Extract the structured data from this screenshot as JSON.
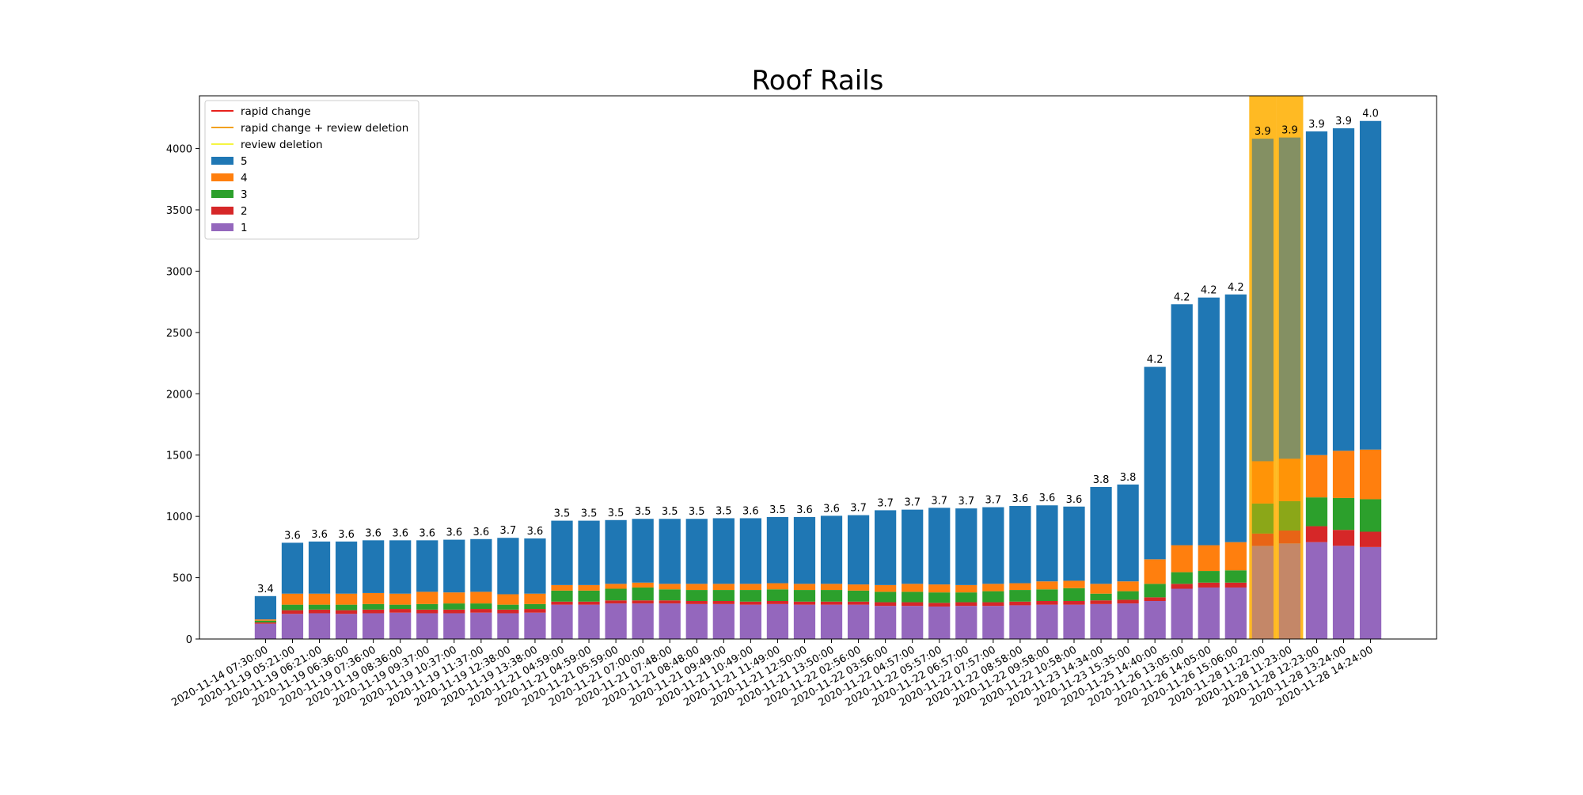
{
  "chart_data": {
    "type": "bar",
    "stacked": true,
    "title": "Roof Rails",
    "xlabel": "",
    "ylabel": "",
    "ylim": [
      0,
      4430
    ],
    "yticks": [
      0,
      500,
      1000,
      1500,
      2000,
      2500,
      3000,
      3500,
      4000
    ],
    "legend_position": "upper-left",
    "grid": false,
    "categories": [
      "2020-11-14 07:30:00",
      "2020-11-19 05:21:00",
      "2020-11-19 06:21:00",
      "2020-11-19 06:36:00",
      "2020-11-19 07:36:00",
      "2020-11-19 08:36:00",
      "2020-11-19 09:37:00",
      "2020-11-19 10:37:00",
      "2020-11-19 11:37:00",
      "2020-11-19 12:38:00",
      "2020-11-19 13:38:00",
      "2020-11-21 04:59:00",
      "2020-11-21 04:59:00",
      "2020-11-21 05:59:00",
      "2020-11-21 07:00:00",
      "2020-11-21 07:48:00",
      "2020-11-21 08:48:00",
      "2020-11-21 09:49:00",
      "2020-11-21 10:49:00",
      "2020-11-21 11:49:00",
      "2020-11-21 12:50:00",
      "2020-11-21 13:50:00",
      "2020-11-22 02:56:00",
      "2020-11-22 03:56:00",
      "2020-11-22 04:57:00",
      "2020-11-22 05:57:00",
      "2020-11-22 06:57:00",
      "2020-11-22 07:57:00",
      "2020-11-22 08:58:00",
      "2020-11-22 09:58:00",
      "2020-11-22 10:58:00",
      "2020-11-23 14:34:00",
      "2020-11-23 15:35:00",
      "2020-11-25 14:40:00",
      "2020-11-26 13:05:00",
      "2020-11-26 14:05:00",
      "2020-11-26 15:06:00",
      "2020-11-28 11:22:00",
      "2020-11-28 11:23:00",
      "2020-11-28 12:23:00",
      "2020-11-28 13:24:00",
      "2020-11-28 14:24:00"
    ],
    "series": [
      {
        "name": "1",
        "color": "#9467bd",
        "values": [
          125,
          205,
          210,
          205,
          210,
          215,
          210,
          210,
          215,
          210,
          215,
          280,
          280,
          290,
          290,
          290,
          285,
          285,
          280,
          285,
          280,
          280,
          280,
          270,
          270,
          265,
          270,
          270,
          275,
          280,
          280,
          285,
          290,
          310,
          410,
          420,
          420,
          760,
          780,
          790,
          760,
          750
        ]
      },
      {
        "name": "2",
        "color": "#d62728",
        "values": [
          10,
          30,
          30,
          30,
          30,
          30,
          30,
          30,
          30,
          30,
          30,
          25,
          25,
          25,
          25,
          25,
          25,
          25,
          25,
          25,
          25,
          25,
          25,
          30,
          30,
          30,
          30,
          30,
          30,
          30,
          30,
          30,
          30,
          30,
          40,
          40,
          40,
          100,
          105,
          130,
          130,
          125
        ]
      },
      {
        "name": "3",
        "color": "#2ca02c",
        "values": [
          15,
          45,
          40,
          45,
          45,
          35,
          45,
          50,
          45,
          40,
          40,
          90,
          90,
          95,
          105,
          90,
          90,
          90,
          95,
          95,
          95,
          95,
          90,
          85,
          85,
          85,
          80,
          90,
          95,
          95,
          105,
          55,
          70,
          110,
          95,
          95,
          100,
          245,
          240,
          235,
          260,
          265
        ]
      },
      {
        "name": "4",
        "color": "#ff7f0e",
        "values": [
          10,
          90,
          90,
          90,
          90,
          90,
          100,
          90,
          95,
          85,
          85,
          45,
          45,
          40,
          40,
          45,
          50,
          50,
          50,
          50,
          50,
          50,
          50,
          55,
          65,
          65,
          60,
          60,
          55,
          65,
          60,
          80,
          80,
          200,
          220,
          210,
          230,
          345,
          345,
          345,
          385,
          405
        ]
      },
      {
        "name": "5",
        "color": "#1f77b4",
        "values": [
          190,
          415,
          425,
          425,
          430,
          435,
          420,
          430,
          430,
          460,
          450,
          525,
          525,
          520,
          520,
          530,
          530,
          535,
          535,
          540,
          545,
          555,
          565,
          610,
          605,
          625,
          625,
          625,
          630,
          620,
          605,
          790,
          790,
          1570,
          1965,
          2020,
          2020,
          2630,
          2620,
          2640,
          2630,
          2680
        ]
      }
    ],
    "bar_labels": [
      "3.4",
      "3.6",
      "3.6",
      "3.6",
      "3.6",
      "3.6",
      "3.6",
      "3.6",
      "3.6",
      "3.7",
      "3.6",
      "3.5",
      "3.5",
      "3.5",
      "3.5",
      "3.5",
      "3.5",
      "3.5",
      "3.6",
      "3.5",
      "3.6",
      "3.6",
      "3.7",
      "3.7",
      "3.7",
      "3.7",
      "3.7",
      "3.7",
      "3.6",
      "3.6",
      "3.6",
      "3.8",
      "3.8",
      "4.2",
      "4.2",
      "4.2",
      "4.2",
      "3.9",
      "3.9",
      "3.9",
      "3.9",
      "4.0"
    ],
    "highlight": {
      "indices": [
        37,
        38
      ],
      "color": "#ffb000",
      "legend": "rapid change + review deletion"
    },
    "legend": [
      {
        "label": "rapid change",
        "kind": "line",
        "color": "#e8211c"
      },
      {
        "label": "rapid change + review deletion",
        "kind": "line",
        "color": "#f2a11f"
      },
      {
        "label": "review deletion",
        "kind": "line",
        "color": "#f5f542"
      },
      {
        "label": "5",
        "kind": "patch",
        "color": "#1f77b4"
      },
      {
        "label": "4",
        "kind": "patch",
        "color": "#ff7f0e"
      },
      {
        "label": "3",
        "kind": "patch",
        "color": "#2ca02c"
      },
      {
        "label": "2",
        "kind": "patch",
        "color": "#d62728"
      },
      {
        "label": "1",
        "kind": "patch",
        "color": "#9467bd"
      }
    ]
  }
}
